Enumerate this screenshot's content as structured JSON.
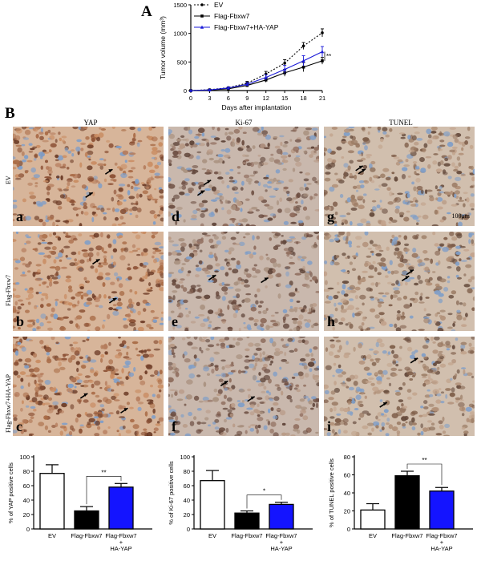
{
  "panel_a_letter": "A",
  "panel_b_letter": "B",
  "micro": {
    "columns": [
      "YAP",
      "Ki-67",
      "TUNEL"
    ],
    "rows": [
      "EV",
      "Flag-Fbxw7",
      "Flag-Fbxw7+HA-YAP"
    ],
    "letters": [
      "a",
      "d",
      "g",
      "b",
      "e",
      "h",
      "c",
      "f",
      "i"
    ],
    "scale_label": "100μm"
  },
  "colors": {
    "ev": "#000000",
    "fbxw7": "#000000",
    "yap": "#1a1ad8",
    "bar_blue": "#1414ff",
    "stain_brown": "#a0603a",
    "stain_blue": "#7f9ec8"
  },
  "chart_data": [
    {
      "type": "line",
      "x": [
        0,
        3,
        6,
        9,
        12,
        15,
        18,
        21
      ],
      "xlabel": "Days after implantation",
      "ylabel": "Tumor volume (mm³)",
      "xlim": [
        0,
        21
      ],
      "ylim": [
        0,
        1500
      ],
      "xticks": [
        "0",
        "3",
        "6",
        "9",
        "12",
        "15",
        "18",
        "21"
      ],
      "yticks": [
        "0",
        "500",
        "1000",
        "1500"
      ],
      "annotation": "**",
      "legend": "top-left",
      "series": [
        {
          "name": "EV",
          "values": [
            0,
            15,
            50,
            130,
            290,
            480,
            780,
            1010
          ],
          "err": [
            0,
            5,
            15,
            30,
            45,
            60,
            60,
            70
          ]
        },
        {
          "name": "Flag-Fbxw7",
          "values": [
            0,
            10,
            30,
            90,
            185,
            310,
            410,
            520
          ],
          "err": [
            0,
            5,
            10,
            25,
            40,
            60,
            80,
            60
          ]
        },
        {
          "name": "Flag-Fbxw7+HA-YAP",
          "values": [
            0,
            12,
            45,
            110,
            230,
            370,
            520,
            680
          ],
          "err": [
            0,
            5,
            15,
            30,
            50,
            70,
            90,
            90
          ]
        }
      ]
    },
    {
      "type": "bar",
      "categories": [
        "EV",
        "Flag-Fbxw7",
        "Flag-Fbxw7 + HA-YAP"
      ],
      "values": [
        77,
        25,
        58
      ],
      "err": [
        12,
        6,
        5
      ],
      "ylabel": "% of YAP positive cells",
      "ylim": [
        0,
        100
      ],
      "yticks": [
        "0",
        "20",
        "40",
        "60",
        "80",
        "100"
      ],
      "annotation": "**"
    },
    {
      "type": "bar",
      "categories": [
        "EV",
        "Flag-Fbxw7",
        "Flag-Fbxw7 + HA-YAP"
      ],
      "values": [
        67,
        22,
        34
      ],
      "err": [
        14,
        3,
        3
      ],
      "ylabel": "% of Ki-67 positive cells",
      "ylim": [
        0,
        100
      ],
      "yticks": [
        "0",
        "20",
        "40",
        "60",
        "80",
        "100"
      ],
      "annotation": "*"
    },
    {
      "type": "bar",
      "categories": [
        "EV",
        "Flag-Fbxw7",
        "Flag-Fbxw7 + HA-YAP"
      ],
      "values": [
        21,
        59,
        42
      ],
      "err": [
        7,
        5,
        4
      ],
      "ylabel": "% of TUNEL positive cells",
      "ylim": [
        0,
        80
      ],
      "yticks": [
        "0",
        "20",
        "40",
        "60",
        "80"
      ],
      "annotation": "**"
    }
  ]
}
